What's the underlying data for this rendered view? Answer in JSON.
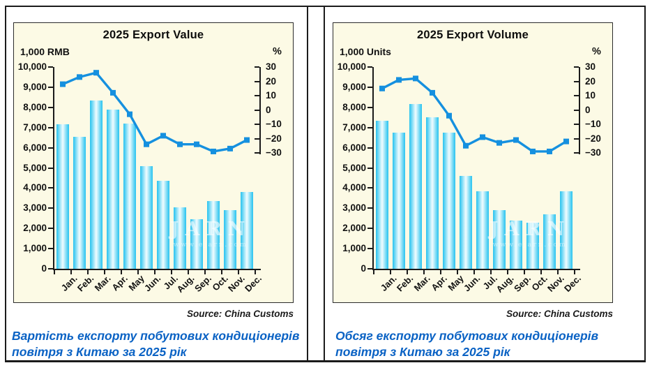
{
  "colors": {
    "chart_bg": "#FCFAE5",
    "bar_edge": "#29C3EF",
    "bar_mid": "#A9E8F8",
    "bar_center": "#EAFAFE",
    "line": "#1590DF",
    "caption_text": "#0A62C4",
    "axis": "#1A1A1A",
    "frame_border": "#1B1B1B"
  },
  "panels": [
    {
      "title": "2025 Export Value",
      "left_axis_unit": "1,000 RMB",
      "right_axis_unit": "%",
      "source": "Source: China Customs",
      "caption_line1": "Вартість експорту побутових кондиціонерів",
      "caption_line2": "повітря з Китаю за 2025 рік",
      "watermark": "JARN",
      "watermark_sub": "www.ejarn.com"
    },
    {
      "title": "2025 Export Volume",
      "left_axis_unit": "1,000 Units",
      "right_axis_unit": "%",
      "source": "Source: China Customs",
      "caption_line1": "Обсяг експорту побутових кондиціонерів",
      "caption_line2": "повітря з Китаю за 2025 рік",
      "watermark": "JARN",
      "watermark_sub": "www.ejarn.com"
    }
  ],
  "chart_data": [
    {
      "type": "bar",
      "combo": "bar+line",
      "title": "2025 Export Value",
      "categories": [
        "Jan.",
        "Feb.",
        "Mar.",
        "Apr.",
        "May",
        "Jun.",
        "Jul.",
        "Aug.",
        "Sep.",
        "Oct.",
        "Nov.",
        "Dec."
      ],
      "series": [
        {
          "name": "Export value (1,000 RMB)",
          "type": "bar",
          "axis": "left",
          "values": [
            7150,
            6550,
            8350,
            7900,
            7200,
            5100,
            4350,
            3050,
            2450,
            3350,
            2900,
            3800
          ]
        },
        {
          "name": "Change (%)",
          "type": "line",
          "axis": "right",
          "values": [
            18,
            23,
            26,
            12,
            -3,
            -24,
            -18,
            -24,
            -24,
            -29,
            -27,
            -21
          ]
        }
      ],
      "left_axis": {
        "label": "1,000 RMB",
        "min": 0,
        "max": 10000,
        "step": 1000,
        "tick_labels": [
          "10,000",
          "9,000",
          "8,000",
          "7,000",
          "6,000",
          "5,000",
          "4,000",
          "3,000",
          "2,000",
          "1,000",
          "0"
        ]
      },
      "right_axis": {
        "label": "%",
        "min": -30,
        "max": 30,
        "step": 10,
        "tick_labels": [
          "30",
          "20",
          "10",
          "0",
          "−10",
          "−20",
          "−30"
        ]
      },
      "grid": false,
      "legend": "none"
    },
    {
      "type": "bar",
      "combo": "bar+line",
      "title": "2025 Export Volume",
      "categories": [
        "Jan.",
        "Feb.",
        "Mar.",
        "Apr.",
        "May",
        "Jun.",
        "Jul.",
        "Aug.",
        "Sep.",
        "Oct.",
        "Nov.",
        "Dec."
      ],
      "series": [
        {
          "name": "Export volume (1,000 units)",
          "type": "bar",
          "axis": "left",
          "values": [
            7350,
            6750,
            8150,
            7500,
            6750,
            4600,
            3850,
            2900,
            2400,
            2300,
            2700,
            3850
          ]
        },
        {
          "name": "Change (%)",
          "type": "line",
          "axis": "right",
          "values": [
            15,
            21,
            22,
            12,
            -4,
            -25,
            -19,
            -23,
            -21,
            -29,
            -29,
            -22
          ]
        }
      ],
      "left_axis": {
        "label": "1,000 Units",
        "min": 0,
        "max": 10000,
        "step": 1000,
        "tick_labels": [
          "10,000",
          "9,000",
          "8,000",
          "7,000",
          "6,000",
          "5,000",
          "4,000",
          "3,000",
          "2,000",
          "1,000",
          "0"
        ]
      },
      "right_axis": {
        "label": "%",
        "min": -30,
        "max": 30,
        "step": 10,
        "tick_labels": [
          "30",
          "20",
          "10",
          "0",
          "−10",
          "−20",
          "−30"
        ]
      },
      "grid": false,
      "legend": "none"
    }
  ]
}
